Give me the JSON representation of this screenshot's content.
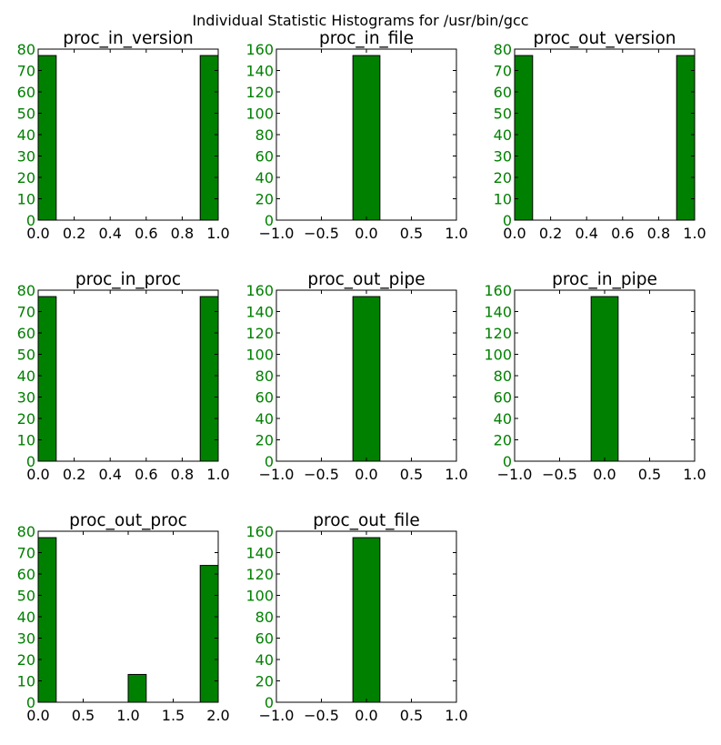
{
  "figure": {
    "suptitle": "Individual Statistic Histograms for /usr/bin/gcc"
  },
  "colors": {
    "bar_fill": "#008000",
    "bar_edge": "#000000",
    "ytick": "#008000",
    "xtick": "#000000"
  },
  "chart_data": [
    {
      "type": "bar",
      "title": "proc_in_version",
      "bins": [
        [
          0.0,
          0.1
        ],
        [
          0.9,
          1.0
        ]
      ],
      "values": [
        77,
        77
      ],
      "xlim": [
        0,
        1
      ],
      "ylim": [
        0,
        80
      ],
      "xticks": [
        0,
        0.2,
        0.4,
        0.6,
        0.8,
        1.0
      ],
      "xtick_labels": [
        "0.0",
        "0.2",
        "0.4",
        "0.6",
        "0.8",
        "1.0"
      ],
      "yticks": [
        0,
        10,
        20,
        30,
        40,
        50,
        60,
        70,
        80
      ],
      "ytick_labels": [
        "0",
        "10",
        "20",
        "30",
        "40",
        "50",
        "60",
        "70",
        "80"
      ]
    },
    {
      "type": "bar",
      "title": "proc_in_file",
      "bins": [
        [
          -0.15,
          0.15
        ]
      ],
      "values": [
        154
      ],
      "xlim": [
        -1,
        1
      ],
      "ylim": [
        0,
        160
      ],
      "xticks": [
        -1,
        -0.5,
        0,
        0.5,
        1
      ],
      "xtick_labels": [
        "−1.0",
        "−0.5",
        "0.0",
        "0.5",
        "1.0"
      ],
      "yticks": [
        0,
        20,
        40,
        60,
        80,
        100,
        120,
        140,
        160
      ],
      "ytick_labels": [
        "0",
        "20",
        "40",
        "60",
        "80",
        "100",
        "120",
        "140",
        "160"
      ]
    },
    {
      "type": "bar",
      "title": "proc_out_version",
      "bins": [
        [
          0.0,
          0.1
        ],
        [
          0.9,
          1.0
        ]
      ],
      "values": [
        77,
        77
      ],
      "xlim": [
        0,
        1
      ],
      "ylim": [
        0,
        80
      ],
      "xticks": [
        0,
        0.2,
        0.4,
        0.6,
        0.8,
        1.0
      ],
      "xtick_labels": [
        "0.0",
        "0.2",
        "0.4",
        "0.6",
        "0.8",
        "1.0"
      ],
      "yticks": [
        0,
        10,
        20,
        30,
        40,
        50,
        60,
        70,
        80
      ],
      "ytick_labels": [
        "0",
        "10",
        "20",
        "30",
        "40",
        "50",
        "60",
        "70",
        "80"
      ]
    },
    {
      "type": "bar",
      "title": "proc_in_proc",
      "bins": [
        [
          0.0,
          0.1
        ],
        [
          0.9,
          1.0
        ]
      ],
      "values": [
        77,
        77
      ],
      "xlim": [
        0,
        1
      ],
      "ylim": [
        0,
        80
      ],
      "xticks": [
        0,
        0.2,
        0.4,
        0.6,
        0.8,
        1.0
      ],
      "xtick_labels": [
        "0.0",
        "0.2",
        "0.4",
        "0.6",
        "0.8",
        "1.0"
      ],
      "yticks": [
        0,
        10,
        20,
        30,
        40,
        50,
        60,
        70,
        80
      ],
      "ytick_labels": [
        "0",
        "10",
        "20",
        "30",
        "40",
        "50",
        "60",
        "70",
        "80"
      ]
    },
    {
      "type": "bar",
      "title": "proc_out_pipe",
      "bins": [
        [
          -0.15,
          0.15
        ]
      ],
      "values": [
        154
      ],
      "xlim": [
        -1,
        1
      ],
      "ylim": [
        0,
        160
      ],
      "xticks": [
        -1,
        -0.5,
        0,
        0.5,
        1
      ],
      "xtick_labels": [
        "−1.0",
        "−0.5",
        "0.0",
        "0.5",
        "1.0"
      ],
      "yticks": [
        0,
        20,
        40,
        60,
        80,
        100,
        120,
        140,
        160
      ],
      "ytick_labels": [
        "0",
        "20",
        "40",
        "60",
        "80",
        "100",
        "120",
        "140",
        "160"
      ]
    },
    {
      "type": "bar",
      "title": "proc_in_pipe",
      "bins": [
        [
          -0.15,
          0.15
        ]
      ],
      "values": [
        154
      ],
      "xlim": [
        -1,
        1
      ],
      "ylim": [
        0,
        160
      ],
      "xticks": [
        -1,
        -0.5,
        0,
        0.5,
        1
      ],
      "xtick_labels": [
        "−1.0",
        "−0.5",
        "0.0",
        "0.5",
        "1.0"
      ],
      "yticks": [
        0,
        20,
        40,
        60,
        80,
        100,
        120,
        140,
        160
      ],
      "ytick_labels": [
        "0",
        "20",
        "40",
        "60",
        "80",
        "100",
        "120",
        "140",
        "160"
      ]
    },
    {
      "type": "bar",
      "title": "proc_out_proc",
      "bins": [
        [
          0.0,
          0.2
        ],
        [
          1.0,
          1.2
        ],
        [
          1.8,
          2.0
        ]
      ],
      "values": [
        77,
        13,
        64
      ],
      "xlim": [
        0,
        2
      ],
      "ylim": [
        0,
        80
      ],
      "xticks": [
        0,
        0.5,
        1.0,
        1.5,
        2.0
      ],
      "xtick_labels": [
        "0.0",
        "0.5",
        "1.0",
        "1.5",
        "2.0"
      ],
      "yticks": [
        0,
        10,
        20,
        30,
        40,
        50,
        60,
        70,
        80
      ],
      "ytick_labels": [
        "0",
        "10",
        "20",
        "30",
        "40",
        "50",
        "60",
        "70",
        "80"
      ]
    },
    {
      "type": "bar",
      "title": "proc_out_file",
      "bins": [
        [
          -0.15,
          0.15
        ]
      ],
      "values": [
        154
      ],
      "xlim": [
        -1,
        1
      ],
      "ylim": [
        0,
        160
      ],
      "xticks": [
        -1,
        -0.5,
        0,
        0.5,
        1
      ],
      "xtick_labels": [
        "−1.0",
        "−0.5",
        "0.0",
        "0.5",
        "1.0"
      ],
      "yticks": [
        0,
        20,
        40,
        60,
        80,
        100,
        120,
        140,
        160
      ],
      "ytick_labels": [
        "0",
        "20",
        "40",
        "60",
        "80",
        "100",
        "120",
        "140",
        "160"
      ]
    }
  ]
}
